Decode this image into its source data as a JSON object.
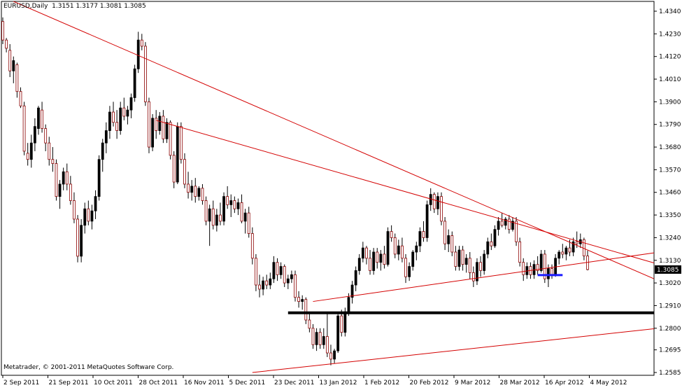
{
  "header": {
    "symbol": "EURUSD,Daily",
    "ohlc": "1.3151 1.3177 1.3081 1.3085"
  },
  "footer": {
    "copyright": "Metatrader, © 2001-2011 MetaQuotes Software Corp."
  },
  "colors": {
    "background": "#ffffff",
    "bull_body": "#000000",
    "bear_body": "#ffffff",
    "wick": "#000000",
    "bear_outline": "#8b0000",
    "trendline": "#d40000",
    "support_line": "#000000",
    "current_price_marker": "#1a1aff",
    "price_label_bg": "#000000",
    "price_label_text": "#ffffff"
  },
  "chart_data": {
    "type": "candlestick",
    "y_ticks": [
      "1.4340",
      "1.4230",
      "1.4120",
      "1.4010",
      "1.3900",
      "1.3790",
      "1.3680",
      "1.3570",
      "1.3460",
      "1.3350",
      "1.3240",
      "1.3130",
      "1.3020",
      "1.2910",
      "1.2800",
      "1.2695",
      "1.2585"
    ],
    "x_ticks": [
      "2 Sep 2011",
      "21 Sep 2011",
      "10 Oct 2011",
      "28 Oct 2011",
      "16 Nov 2011",
      "5 Dec 2011",
      "23 Dec 2011",
      "13 Jan 2012",
      "1 Feb 2012",
      "20 Feb 2012",
      "9 Mar 2012",
      "28 Mar 2012",
      "16 Apr 2012",
      "4 May 2012"
    ],
    "ylim": [
      1.2585,
      1.434
    ],
    "grid": false,
    "current_price": "1.3085",
    "candles": [
      {
        "o": 1.429,
        "h": 1.431,
        "l": 1.418,
        "c": 1.42
      },
      {
        "o": 1.42,
        "h": 1.421,
        "l": 1.414,
        "c": 1.416
      },
      {
        "o": 1.415,
        "h": 1.418,
        "l": 1.402,
        "c": 1.405
      },
      {
        "o": 1.405,
        "h": 1.412,
        "l": 1.399,
        "c": 1.41
      },
      {
        "o": 1.408,
        "h": 1.409,
        "l": 1.392,
        "c": 1.395
      },
      {
        "o": 1.395,
        "h": 1.397,
        "l": 1.387,
        "c": 1.388
      },
      {
        "o": 1.388,
        "h": 1.39,
        "l": 1.364,
        "c": 1.366
      },
      {
        "o": 1.365,
        "h": 1.37,
        "l": 1.359,
        "c": 1.362
      },
      {
        "o": 1.362,
        "h": 1.374,
        "l": 1.358,
        "c": 1.37
      },
      {
        "o": 1.37,
        "h": 1.382,
        "l": 1.366,
        "c": 1.378
      },
      {
        "o": 1.377,
        "h": 1.388,
        "l": 1.374,
        "c": 1.387
      },
      {
        "o": 1.386,
        "h": 1.39,
        "l": 1.375,
        "c": 1.377
      },
      {
        "o": 1.377,
        "h": 1.379,
        "l": 1.366,
        "c": 1.37
      },
      {
        "o": 1.37,
        "h": 1.373,
        "l": 1.359,
        "c": 1.362
      },
      {
        "o": 1.362,
        "h": 1.368,
        "l": 1.356,
        "c": 1.36
      },
      {
        "o": 1.36,
        "h": 1.362,
        "l": 1.342,
        "c": 1.344
      },
      {
        "o": 1.344,
        "h": 1.352,
        "l": 1.338,
        "c": 1.35
      },
      {
        "o": 1.35,
        "h": 1.358,
        "l": 1.347,
        "c": 1.356
      },
      {
        "o": 1.356,
        "h": 1.36,
        "l": 1.347,
        "c": 1.35
      },
      {
        "o": 1.35,
        "h": 1.354,
        "l": 1.34,
        "c": 1.342
      },
      {
        "o": 1.342,
        "h": 1.346,
        "l": 1.331,
        "c": 1.333
      },
      {
        "o": 1.333,
        "h": 1.335,
        "l": 1.312,
        "c": 1.315
      },
      {
        "o": 1.315,
        "h": 1.333,
        "l": 1.312,
        "c": 1.33
      },
      {
        "o": 1.33,
        "h": 1.341,
        "l": 1.326,
        "c": 1.338
      },
      {
        "o": 1.338,
        "h": 1.342,
        "l": 1.33,
        "c": 1.332
      },
      {
        "o": 1.332,
        "h": 1.34,
        "l": 1.328,
        "c": 1.337
      },
      {
        "o": 1.337,
        "h": 1.347,
        "l": 1.333,
        "c": 1.344
      },
      {
        "o": 1.344,
        "h": 1.364,
        "l": 1.342,
        "c": 1.362
      },
      {
        "o": 1.362,
        "h": 1.372,
        "l": 1.356,
        "c": 1.37
      },
      {
        "o": 1.37,
        "h": 1.38,
        "l": 1.365,
        "c": 1.376
      },
      {
        "o": 1.376,
        "h": 1.388,
        "l": 1.372,
        "c": 1.385
      },
      {
        "o": 1.385,
        "h": 1.39,
        "l": 1.378,
        "c": 1.38
      },
      {
        "o": 1.38,
        "h": 1.386,
        "l": 1.372,
        "c": 1.376
      },
      {
        "o": 1.376,
        "h": 1.39,
        "l": 1.374,
        "c": 1.387
      },
      {
        "o": 1.387,
        "h": 1.392,
        "l": 1.381,
        "c": 1.383
      },
      {
        "o": 1.383,
        "h": 1.388,
        "l": 1.379,
        "c": 1.386
      },
      {
        "o": 1.386,
        "h": 1.394,
        "l": 1.382,
        "c": 1.392
      },
      {
        "o": 1.392,
        "h": 1.408,
        "l": 1.39,
        "c": 1.406
      },
      {
        "o": 1.406,
        "h": 1.424,
        "l": 1.404,
        "c": 1.42
      },
      {
        "o": 1.42,
        "h": 1.423,
        "l": 1.415,
        "c": 1.417
      },
      {
        "o": 1.417,
        "h": 1.419,
        "l": 1.388,
        "c": 1.39
      },
      {
        "o": 1.39,
        "h": 1.392,
        "l": 1.365,
        "c": 1.368
      },
      {
        "o": 1.368,
        "h": 1.384,
        "l": 1.366,
        "c": 1.382
      },
      {
        "o": 1.382,
        "h": 1.386,
        "l": 1.372,
        "c": 1.376
      },
      {
        "o": 1.376,
        "h": 1.385,
        "l": 1.374,
        "c": 1.383
      },
      {
        "o": 1.383,
        "h": 1.386,
        "l": 1.37,
        "c": 1.372
      },
      {
        "o": 1.372,
        "h": 1.382,
        "l": 1.37,
        "c": 1.38
      },
      {
        "o": 1.38,
        "h": 1.381,
        "l": 1.362,
        "c": 1.364
      },
      {
        "o": 1.364,
        "h": 1.366,
        "l": 1.348,
        "c": 1.351
      },
      {
        "o": 1.351,
        "h": 1.38,
        "l": 1.35,
        "c": 1.378
      },
      {
        "o": 1.378,
        "h": 1.38,
        "l": 1.36,
        "c": 1.362
      },
      {
        "o": 1.362,
        "h": 1.365,
        "l": 1.348,
        "c": 1.35
      },
      {
        "o": 1.35,
        "h": 1.356,
        "l": 1.343,
        "c": 1.346
      },
      {
        "o": 1.346,
        "h": 1.352,
        "l": 1.342,
        "c": 1.349
      },
      {
        "o": 1.349,
        "h": 1.353,
        "l": 1.341,
        "c": 1.344
      },
      {
        "o": 1.344,
        "h": 1.349,
        "l": 1.342,
        "c": 1.348
      },
      {
        "o": 1.348,
        "h": 1.35,
        "l": 1.34,
        "c": 1.342
      },
      {
        "o": 1.342,
        "h": 1.344,
        "l": 1.33,
        "c": 1.332
      },
      {
        "o": 1.332,
        "h": 1.34,
        "l": 1.32,
        "c": 1.338
      },
      {
        "o": 1.338,
        "h": 1.342,
        "l": 1.328,
        "c": 1.33
      },
      {
        "o": 1.33,
        "h": 1.338,
        "l": 1.327,
        "c": 1.335
      },
      {
        "o": 1.335,
        "h": 1.341,
        "l": 1.33,
        "c": 1.332
      },
      {
        "o": 1.332,
        "h": 1.346,
        "l": 1.33,
        "c": 1.344
      },
      {
        "o": 1.344,
        "h": 1.349,
        "l": 1.338,
        "c": 1.34
      },
      {
        "o": 1.34,
        "h": 1.345,
        "l": 1.334,
        "c": 1.342
      },
      {
        "o": 1.342,
        "h": 1.344,
        "l": 1.336,
        "c": 1.338
      },
      {
        "o": 1.338,
        "h": 1.343,
        "l": 1.335,
        "c": 1.341
      },
      {
        "o": 1.341,
        "h": 1.345,
        "l": 1.331,
        "c": 1.332
      },
      {
        "o": 1.332,
        "h": 1.338,
        "l": 1.326,
        "c": 1.336
      },
      {
        "o": 1.336,
        "h": 1.339,
        "l": 1.324,
        "c": 1.326
      },
      {
        "o": 1.326,
        "h": 1.329,
        "l": 1.311,
        "c": 1.314
      },
      {
        "o": 1.314,
        "h": 1.316,
        "l": 1.298,
        "c": 1.301
      },
      {
        "o": 1.301,
        "h": 1.306,
        "l": 1.295,
        "c": 1.299
      },
      {
        "o": 1.299,
        "h": 1.305,
        "l": 1.296,
        "c": 1.303
      },
      {
        "o": 1.303,
        "h": 1.306,
        "l": 1.299,
        "c": 1.301
      },
      {
        "o": 1.301,
        "h": 1.307,
        "l": 1.299,
        "c": 1.304
      },
      {
        "o": 1.304,
        "h": 1.315,
        "l": 1.302,
        "c": 1.312
      },
      {
        "o": 1.312,
        "h": 1.314,
        "l": 1.303,
        "c": 1.306
      },
      {
        "o": 1.306,
        "h": 1.312,
        "l": 1.304,
        "c": 1.31
      },
      {
        "o": 1.31,
        "h": 1.311,
        "l": 1.3,
        "c": 1.302
      },
      {
        "o": 1.302,
        "h": 1.306,
        "l": 1.299,
        "c": 1.304
      },
      {
        "o": 1.304,
        "h": 1.308,
        "l": 1.302,
        "c": 1.306
      },
      {
        "o": 1.306,
        "h": 1.308,
        "l": 1.293,
        "c": 1.295
      },
      {
        "o": 1.295,
        "h": 1.298,
        "l": 1.29,
        "c": 1.293
      },
      {
        "o": 1.293,
        "h": 1.296,
        "l": 1.289,
        "c": 1.294
      },
      {
        "o": 1.294,
        "h": 1.295,
        "l": 1.282,
        "c": 1.284
      },
      {
        "o": 1.284,
        "h": 1.288,
        "l": 1.278,
        "c": 1.28
      },
      {
        "o": 1.28,
        "h": 1.282,
        "l": 1.27,
        "c": 1.272
      },
      {
        "o": 1.272,
        "h": 1.28,
        "l": 1.269,
        "c": 1.278
      },
      {
        "o": 1.278,
        "h": 1.28,
        "l": 1.27,
        "c": 1.272
      },
      {
        "o": 1.272,
        "h": 1.28,
        "l": 1.27,
        "c": 1.276
      },
      {
        "o": 1.276,
        "h": 1.287,
        "l": 1.266,
        "c": 1.268
      },
      {
        "o": 1.268,
        "h": 1.272,
        "l": 1.262,
        "c": 1.265
      },
      {
        "o": 1.265,
        "h": 1.27,
        "l": 1.263,
        "c": 1.269
      },
      {
        "o": 1.269,
        "h": 1.288,
        "l": 1.268,
        "c": 1.286
      },
      {
        "o": 1.286,
        "h": 1.289,
        "l": 1.276,
        "c": 1.278
      },
      {
        "o": 1.278,
        "h": 1.29,
        "l": 1.276,
        "c": 1.288
      },
      {
        "o": 1.288,
        "h": 1.297,
        "l": 1.286,
        "c": 1.295
      },
      {
        "o": 1.295,
        "h": 1.303,
        "l": 1.292,
        "c": 1.301
      },
      {
        "o": 1.301,
        "h": 1.31,
        "l": 1.298,
        "c": 1.308
      },
      {
        "o": 1.308,
        "h": 1.316,
        "l": 1.306,
        "c": 1.314
      },
      {
        "o": 1.314,
        "h": 1.322,
        "l": 1.312,
        "c": 1.319
      },
      {
        "o": 1.319,
        "h": 1.32,
        "l": 1.311,
        "c": 1.314
      },
      {
        "o": 1.314,
        "h": 1.318,
        "l": 1.306,
        "c": 1.308
      },
      {
        "o": 1.308,
        "h": 1.319,
        "l": 1.306,
        "c": 1.317
      },
      {
        "o": 1.317,
        "h": 1.319,
        "l": 1.309,
        "c": 1.312
      },
      {
        "o": 1.312,
        "h": 1.318,
        "l": 1.308,
        "c": 1.316
      },
      {
        "o": 1.316,
        "h": 1.32,
        "l": 1.309,
        "c": 1.311
      },
      {
        "o": 1.311,
        "h": 1.329,
        "l": 1.31,
        "c": 1.327
      },
      {
        "o": 1.327,
        "h": 1.33,
        "l": 1.322,
        "c": 1.324
      },
      {
        "o": 1.324,
        "h": 1.326,
        "l": 1.314,
        "c": 1.316
      },
      {
        "o": 1.316,
        "h": 1.323,
        "l": 1.313,
        "c": 1.32
      },
      {
        "o": 1.32,
        "h": 1.324,
        "l": 1.312,
        "c": 1.314
      },
      {
        "o": 1.314,
        "h": 1.316,
        "l": 1.302,
        "c": 1.305
      },
      {
        "o": 1.305,
        "h": 1.312,
        "l": 1.303,
        "c": 1.31
      },
      {
        "o": 1.31,
        "h": 1.318,
        "l": 1.308,
        "c": 1.317
      },
      {
        "o": 1.317,
        "h": 1.322,
        "l": 1.313,
        "c": 1.32
      },
      {
        "o": 1.32,
        "h": 1.329,
        "l": 1.317,
        "c": 1.327
      },
      {
        "o": 1.327,
        "h": 1.332,
        "l": 1.322,
        "c": 1.324
      },
      {
        "o": 1.324,
        "h": 1.342,
        "l": 1.322,
        "c": 1.34
      },
      {
        "o": 1.34,
        "h": 1.348,
        "l": 1.337,
        "c": 1.345
      },
      {
        "o": 1.345,
        "h": 1.346,
        "l": 1.336,
        "c": 1.338
      },
      {
        "o": 1.338,
        "h": 1.346,
        "l": 1.335,
        "c": 1.344
      },
      {
        "o": 1.344,
        "h": 1.346,
        "l": 1.33,
        "c": 1.332
      },
      {
        "o": 1.332,
        "h": 1.334,
        "l": 1.318,
        "c": 1.321
      },
      {
        "o": 1.321,
        "h": 1.328,
        "l": 1.317,
        "c": 1.325
      },
      {
        "o": 1.325,
        "h": 1.327,
        "l": 1.315,
        "c": 1.317
      },
      {
        "o": 1.317,
        "h": 1.32,
        "l": 1.308,
        "c": 1.31
      },
      {
        "o": 1.31,
        "h": 1.32,
        "l": 1.308,
        "c": 1.318
      },
      {
        "o": 1.318,
        "h": 1.32,
        "l": 1.308,
        "c": 1.311
      },
      {
        "o": 1.311,
        "h": 1.316,
        "l": 1.307,
        "c": 1.314
      },
      {
        "o": 1.314,
        "h": 1.317,
        "l": 1.304,
        "c": 1.307
      },
      {
        "o": 1.307,
        "h": 1.31,
        "l": 1.3,
        "c": 1.303
      },
      {
        "o": 1.303,
        "h": 1.314,
        "l": 1.301,
        "c": 1.312
      },
      {
        "o": 1.312,
        "h": 1.315,
        "l": 1.305,
        "c": 1.308
      },
      {
        "o": 1.308,
        "h": 1.318,
        "l": 1.306,
        "c": 1.316
      },
      {
        "o": 1.316,
        "h": 1.324,
        "l": 1.314,
        "c": 1.322
      },
      {
        "o": 1.322,
        "h": 1.326,
        "l": 1.318,
        "c": 1.32
      },
      {
        "o": 1.32,
        "h": 1.33,
        "l": 1.319,
        "c": 1.328
      },
      {
        "o": 1.328,
        "h": 1.334,
        "l": 1.325,
        "c": 1.332
      },
      {
        "o": 1.332,
        "h": 1.336,
        "l": 1.329,
        "c": 1.33
      },
      {
        "o": 1.33,
        "h": 1.334,
        "l": 1.328,
        "c": 1.333
      },
      {
        "o": 1.333,
        "h": 1.335,
        "l": 1.326,
        "c": 1.328
      },
      {
        "o": 1.328,
        "h": 1.334,
        "l": 1.327,
        "c": 1.332
      },
      {
        "o": 1.332,
        "h": 1.334,
        "l": 1.32,
        "c": 1.322
      },
      {
        "o": 1.322,
        "h": 1.324,
        "l": 1.31,
        "c": 1.312
      },
      {
        "o": 1.312,
        "h": 1.314,
        "l": 1.303,
        "c": 1.306
      },
      {
        "o": 1.306,
        "h": 1.312,
        "l": 1.304,
        "c": 1.31
      },
      {
        "o": 1.31,
        "h": 1.312,
        "l": 1.304,
        "c": 1.306
      },
      {
        "o": 1.306,
        "h": 1.313,
        "l": 1.304,
        "c": 1.311
      },
      {
        "o": 1.311,
        "h": 1.315,
        "l": 1.306,
        "c": 1.308
      },
      {
        "o": 1.308,
        "h": 1.318,
        "l": 1.307,
        "c": 1.316
      },
      {
        "o": 1.316,
        "h": 1.318,
        "l": 1.302,
        "c": 1.304
      },
      {
        "o": 1.304,
        "h": 1.311,
        "l": 1.3,
        "c": 1.309
      },
      {
        "o": 1.309,
        "h": 1.311,
        "l": 1.304,
        "c": 1.306
      },
      {
        "o": 1.306,
        "h": 1.316,
        "l": 1.305,
        "c": 1.314
      },
      {
        "o": 1.314,
        "h": 1.318,
        "l": 1.311,
        "c": 1.317
      },
      {
        "o": 1.317,
        "h": 1.321,
        "l": 1.314,
        "c": 1.316
      },
      {
        "o": 1.316,
        "h": 1.32,
        "l": 1.313,
        "c": 1.319
      },
      {
        "o": 1.319,
        "h": 1.323,
        "l": 1.315,
        "c": 1.317
      },
      {
        "o": 1.317,
        "h": 1.324,
        "l": 1.315,
        "c": 1.322
      },
      {
        "o": 1.322,
        "h": 1.327,
        "l": 1.319,
        "c": 1.321
      },
      {
        "o": 1.321,
        "h": 1.326,
        "l": 1.319,
        "c": 1.323
      },
      {
        "o": 1.323,
        "h": 1.324,
        "l": 1.313,
        "c": 1.3151
      },
      {
        "o": 1.3151,
        "h": 1.3177,
        "l": 1.3081,
        "c": 1.3085
      }
    ],
    "trendlines": [
      {
        "name": "",
        "from": [
          0,
          1.441
        ],
        "to": [
          168,
          1.315
        ],
        "color": "#d40000"
      },
      {
        "name": "",
        "from": [
          43,
          1.381
        ],
        "to": [
          168,
          1.319
        ],
        "color": "#d40000"
      },
      {
        "name": "",
        "from": [
          87,
          1.293
        ],
        "to": [
          168,
          1.313
        ],
        "color": "#d40000"
      },
      {
        "name": "",
        "from": [
          70,
          1.2585
        ],
        "to": [
          168,
          1.277
        ],
        "color": "#d40000"
      }
    ],
    "horizontal_lines": [
      {
        "price": 1.2875,
        "from": 80,
        "to": 168,
        "color": "#000000"
      },
      {
        "price": 1.3058,
        "from": 150,
        "to": 157,
        "color": "#1a1aff"
      }
    ]
  }
}
